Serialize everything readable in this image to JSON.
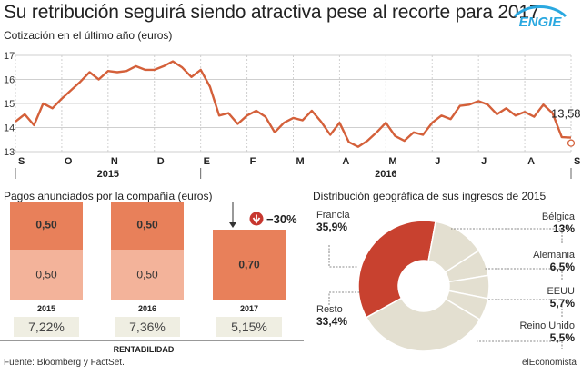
{
  "header": {
    "title": "Su retribución seguirá siendo atractiva pese al recorte para 2017",
    "logo_text": "ENGIE",
    "subtitle": "Cotización en el último año (euros)"
  },
  "colors": {
    "accent": "#d4603a",
    "bar_dark": "#e8805a",
    "bar_light": "#f3b39a",
    "pie_main": "#c8412f",
    "pie_rest": "#e3dfd0",
    "grid": "#cfcfcf",
    "box_bg": "#efeee2",
    "arrow": "#c7372f"
  },
  "chart_data": [
    {
      "type": "line",
      "title": "Cotización en el último año (euros)",
      "y_ticks": [
        "17",
        "16",
        "15",
        "14",
        "13"
      ],
      "ylim": [
        13,
        17
      ],
      "months": [
        "S",
        "O",
        "N",
        "D",
        "E",
        "F",
        "M",
        "A",
        "M",
        "J",
        "J",
        "A",
        "S"
      ],
      "years": [
        "2015",
        "2016"
      ],
      "grid": true,
      "last_value_label": "13,58",
      "series": [
        {
          "x": [
            0.0,
            0.2,
            0.4,
            0.6,
            0.8,
            1.0,
            1.2,
            1.4,
            1.6,
            1.8,
            2.0,
            2.2,
            2.4,
            2.6,
            2.8,
            3.0,
            3.2,
            3.4,
            3.6,
            3.8,
            4.0,
            4.2,
            4.4,
            4.6,
            4.8,
            5.0,
            5.2,
            5.4,
            5.6,
            5.8,
            6.0,
            6.2,
            6.4,
            6.6,
            6.8,
            7.0,
            7.2,
            7.4,
            7.6,
            7.8,
            8.0,
            8.2,
            8.4,
            8.6,
            8.8,
            9.0,
            9.2,
            9.4,
            9.6,
            9.8,
            10.0,
            10.2,
            10.4,
            10.6,
            10.8,
            11.0,
            11.2,
            11.4,
            11.6,
            11.8,
            12.0
          ],
          "values": [
            14.25,
            14.55,
            14.1,
            15.0,
            14.8,
            15.2,
            15.55,
            15.9,
            16.3,
            16.0,
            16.35,
            16.3,
            16.35,
            16.55,
            16.4,
            16.4,
            16.55,
            16.75,
            16.5,
            16.1,
            16.4,
            15.7,
            14.5,
            14.6,
            14.15,
            14.5,
            14.7,
            14.45,
            13.8,
            14.2,
            14.4,
            14.3,
            14.7,
            14.25,
            13.7,
            14.2,
            13.4,
            13.2,
            13.45,
            13.8,
            14.2,
            13.65,
            13.45,
            13.8,
            13.7,
            14.2,
            14.5,
            14.35,
            14.9,
            14.95,
            15.1,
            14.95,
            14.55,
            14.8,
            14.5,
            14.65,
            14.45,
            14.95,
            14.6,
            13.6,
            13.58
          ]
        }
      ]
    },
    {
      "type": "bar",
      "title": "Pagos anunciados por la compañía (euros)",
      "categories": [
        "2015",
        "2016",
        "2017"
      ],
      "series": [
        {
          "values": [
            0.5,
            0.5,
            null
          ]
        },
        {
          "values": [
            0.5,
            0.5,
            0.7
          ]
        }
      ],
      "value_labels": [
        [
          "0,50",
          "0,50"
        ],
        [
          "0,50",
          "0,50"
        ],
        [
          "0,70"
        ]
      ],
      "change_label": "−30%",
      "rentabilidad": [
        "7,22%",
        "7,36%",
        "5,15%"
      ],
      "rentabilidad_label": "RENTABILIDAD"
    },
    {
      "type": "pie",
      "title": "Distribución geográfica de sus ingresos de 2015",
      "slices": [
        {
          "name": "Francia",
          "value": 35.9,
          "label": "35,9%"
        },
        {
          "name": "Bélgica",
          "value": 13,
          "label": "13%"
        },
        {
          "name": "Alemania",
          "value": 6.5,
          "label": "6,5%"
        },
        {
          "name": "EEUU",
          "value": 5.7,
          "label": "5,7%"
        },
        {
          "name": "Reino Unido",
          "value": 5.5,
          "label": "5,5%"
        },
        {
          "name": "Resto",
          "value": 33.4,
          "label": "33,4%"
        }
      ]
    }
  ],
  "footer": {
    "source": "Fuente: Bloomberg y FactSet.",
    "brand": "elEconomista"
  }
}
